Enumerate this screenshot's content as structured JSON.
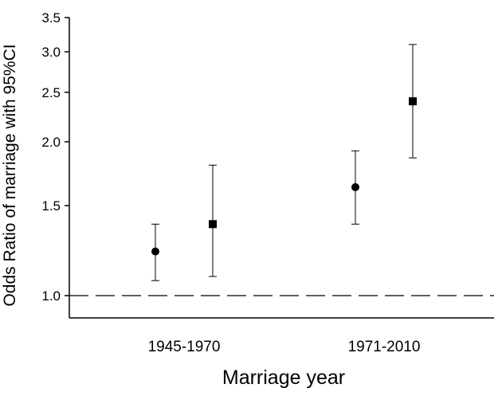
{
  "chart_data": {
    "type": "scatter",
    "title": "",
    "xlabel": "Marriage year",
    "ylabel": "Odds Ratio of marriage with 95%CI",
    "categories": [
      "1945-1970",
      "1971-2010"
    ],
    "y_scale": "log",
    "ylim": [
      0.9,
      3.5
    ],
    "y_ticks": [
      1.0,
      1.5,
      2.0,
      2.5,
      3.0,
      3.5
    ],
    "y_tick_labels": [
      "1.0",
      "1.5",
      "2.0",
      "2.5",
      "3.0",
      "3.5"
    ],
    "reference_line": {
      "y": 1.0,
      "style": "dashed"
    },
    "series": [
      {
        "marker": "circle",
        "points": [
          {
            "category": "1945-1970",
            "or": 1.22,
            "lower": 1.07,
            "upper": 1.38
          },
          {
            "category": "1971-2010",
            "or": 1.63,
            "lower": 1.38,
            "upper": 1.92
          }
        ]
      },
      {
        "marker": "square",
        "points": [
          {
            "category": "1945-1970",
            "or": 1.38,
            "lower": 1.09,
            "upper": 1.8
          },
          {
            "category": "1971-2010",
            "or": 2.4,
            "lower": 1.86,
            "upper": 3.1
          }
        ]
      }
    ],
    "grid": false,
    "legend": "none"
  }
}
